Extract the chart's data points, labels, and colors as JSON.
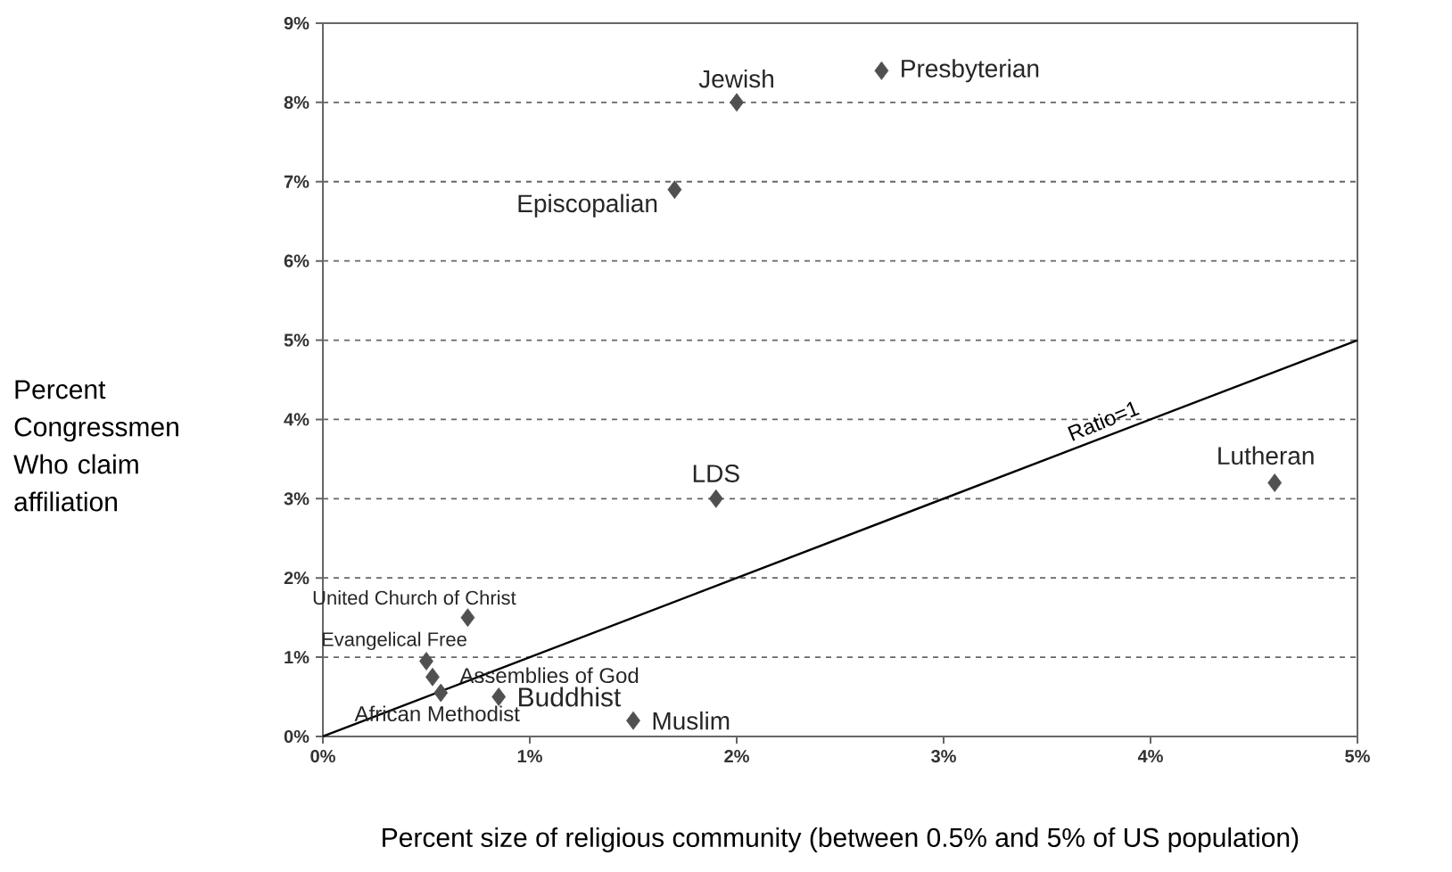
{
  "chart_data": {
    "type": "scatter",
    "xlabel": "Percent size of religious community (between 0.5% and 5% of US population)",
    "ylabel": "Percent Congressmen Who claim affiliation",
    "xlim": [
      0,
      5
    ],
    "ylim": [
      0,
      9
    ],
    "xticks": [
      {
        "value": 0,
        "label": "0%"
      },
      {
        "value": 1,
        "label": "1%"
      },
      {
        "value": 2,
        "label": "2%"
      },
      {
        "value": 3,
        "label": "3%"
      },
      {
        "value": 4,
        "label": "4%"
      },
      {
        "value": 5,
        "label": "5%"
      }
    ],
    "yticks": [
      {
        "value": 0,
        "label": "0%"
      },
      {
        "value": 1,
        "label": "1%"
      },
      {
        "value": 2,
        "label": "2%"
      },
      {
        "value": 3,
        "label": "3%"
      },
      {
        "value": 4,
        "label": "4%"
      },
      {
        "value": 5,
        "label": "5%"
      },
      {
        "value": 6,
        "label": "6%"
      },
      {
        "value": 7,
        "label": "7%"
      },
      {
        "value": 8,
        "label": "8%"
      },
      {
        "value": 9,
        "label": "9%"
      }
    ],
    "grid": "y",
    "legend": false,
    "series": [
      {
        "marker": "diamond",
        "color": "#505050",
        "x": [
          2.0,
          2.7,
          1.7,
          1.9,
          4.6,
          0.7,
          0.5,
          0.53,
          0.85,
          0.57,
          1.5
        ],
        "values": [
          8.0,
          8.4,
          6.9,
          3.0,
          3.2,
          1.5,
          0.95,
          0.75,
          0.5,
          0.55,
          0.2
        ]
      },
      {
        "type": "line",
        "name": "Ratio=1",
        "color": "#000000",
        "line_style": "solid",
        "marker": "none",
        "x": [
          0,
          5
        ],
        "values": [
          0,
          5
        ]
      }
    ],
    "annotations": [
      {
        "text": "Jewish",
        "x": 2.0,
        "y": 8.0
      },
      {
        "text": "Presbyterian",
        "x": 2.7,
        "y": 8.4
      },
      {
        "text": "Episcopalian",
        "x": 1.7,
        "y": 6.9
      },
      {
        "text": "LDS",
        "x": 1.9,
        "y": 3.0
      },
      {
        "text": "Lutheran",
        "x": 4.6,
        "y": 3.2
      },
      {
        "text": "United Church of Christ",
        "x": 0.7,
        "y": 1.5
      },
      {
        "text": "Evangelical Free",
        "x": 0.5,
        "y": 0.95
      },
      {
        "text": "Assemblies of God",
        "x": 0.53,
        "y": 0.75
      },
      {
        "text": "Buddhist",
        "x": 0.85,
        "y": 0.5
      },
      {
        "text": "African Methodist",
        "x": 0.57,
        "y": 0.55
      },
      {
        "text": "Muslim",
        "x": 1.5,
        "y": 0.2
      }
    ]
  }
}
